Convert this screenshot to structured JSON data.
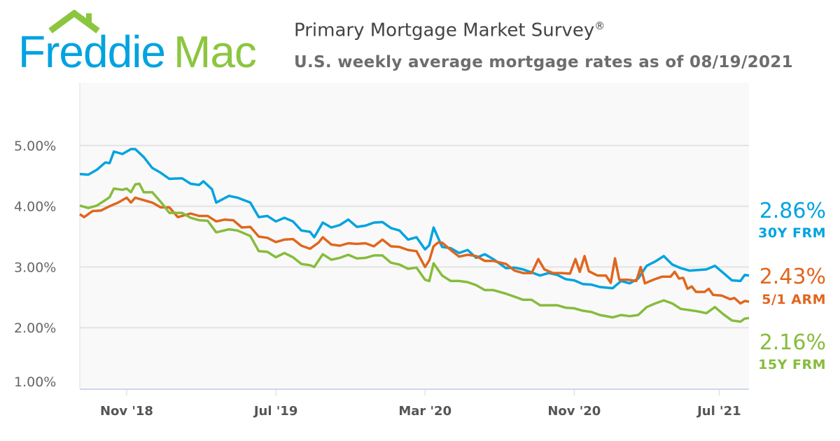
{
  "header": {
    "logo_text_1": "Freddie",
    "logo_text_2": "Mac",
    "title": "Primary Mortgage Market Survey",
    "title_mark": "®",
    "subtitle": "U.S. weekly average mortgage rates as of 08/19/2021"
  },
  "colors": {
    "blue": "#00a3e0",
    "orange": "#e0661e",
    "green": "#86bc3c",
    "logo_blue": "#00a3e0",
    "logo_green": "#8cc63f"
  },
  "chart_data": {
    "type": "line",
    "title": "Primary Mortgage Market Survey®",
    "subtitle": "U.S. weekly average mortgage rates as of 08/19/2021",
    "xlim": [
      "2018-08-16",
      "2021-08-19"
    ],
    "ylim": [
      1.0,
      6.0
    ],
    "grid": true,
    "y_ticks": [
      {
        "value": 1.0,
        "label": "1.00%"
      },
      {
        "value": 2.0,
        "label": "2.00%"
      },
      {
        "value": 3.0,
        "label": "3.00%"
      },
      {
        "value": 4.0,
        "label": "4.00%"
      },
      {
        "value": 5.0,
        "label": "5.00%"
      }
    ],
    "x_ticks": [
      {
        "date": "2018-11-01",
        "label": "Nov '18"
      },
      {
        "date": "2019-07-04",
        "label": "Jul '19"
      },
      {
        "date": "2020-03-05",
        "label": "Mar '20"
      },
      {
        "date": "2020-11-05",
        "label": "Nov '20"
      },
      {
        "date": "2021-07-01",
        "label": "Jul '21"
      }
    ],
    "series": [
      {
        "name": "30Y FRM",
        "latest": "2.86%",
        "color": "#00a3e0",
        "points": [
          [
            "2018-08-16",
            4.53
          ],
          [
            "2018-08-30",
            4.52
          ],
          [
            "2018-09-13",
            4.6
          ],
          [
            "2018-09-27",
            4.72
          ],
          [
            "2018-10-04",
            4.71
          ],
          [
            "2018-10-11",
            4.9
          ],
          [
            "2018-10-25",
            4.86
          ],
          [
            "2018-11-08",
            4.94
          ],
          [
            "2018-11-15",
            4.94
          ],
          [
            "2018-11-29",
            4.81
          ],
          [
            "2018-12-13",
            4.63
          ],
          [
            "2018-12-27",
            4.55
          ],
          [
            "2019-01-10",
            4.45
          ],
          [
            "2019-01-31",
            4.46
          ],
          [
            "2019-02-14",
            4.37
          ],
          [
            "2019-02-28",
            4.35
          ],
          [
            "2019-03-07",
            4.41
          ],
          [
            "2019-03-21",
            4.28
          ],
          [
            "2019-03-28",
            4.06
          ],
          [
            "2019-04-18",
            4.17
          ],
          [
            "2019-05-02",
            4.14
          ],
          [
            "2019-05-23",
            4.06
          ],
          [
            "2019-06-06",
            3.82
          ],
          [
            "2019-06-20",
            3.84
          ],
          [
            "2019-07-04",
            3.75
          ],
          [
            "2019-07-18",
            3.81
          ],
          [
            "2019-08-01",
            3.75
          ],
          [
            "2019-08-15",
            3.6
          ],
          [
            "2019-08-29",
            3.58
          ],
          [
            "2019-09-05",
            3.49
          ],
          [
            "2019-09-19",
            3.73
          ],
          [
            "2019-10-03",
            3.65
          ],
          [
            "2019-10-17",
            3.69
          ],
          [
            "2019-10-31",
            3.78
          ],
          [
            "2019-11-14",
            3.66
          ],
          [
            "2019-11-28",
            3.68
          ],
          [
            "2019-12-12",
            3.73
          ],
          [
            "2019-12-26",
            3.74
          ],
          [
            "2020-01-09",
            3.64
          ],
          [
            "2020-01-23",
            3.6
          ],
          [
            "2020-02-06",
            3.45
          ],
          [
            "2020-02-20",
            3.49
          ],
          [
            "2020-03-05",
            3.29
          ],
          [
            "2020-03-12",
            3.36
          ],
          [
            "2020-03-19",
            3.65
          ],
          [
            "2020-04-02",
            3.33
          ],
          [
            "2020-04-16",
            3.31
          ],
          [
            "2020-04-30",
            3.23
          ],
          [
            "2020-05-14",
            3.28
          ],
          [
            "2020-05-28",
            3.15
          ],
          [
            "2020-06-11",
            3.21
          ],
          [
            "2020-06-25",
            3.13
          ],
          [
            "2020-07-16",
            2.98
          ],
          [
            "2020-07-30",
            2.99
          ],
          [
            "2020-08-13",
            2.96
          ],
          [
            "2020-08-27",
            2.91
          ],
          [
            "2020-09-10",
            2.86
          ],
          [
            "2020-09-24",
            2.9
          ],
          [
            "2020-10-08",
            2.87
          ],
          [
            "2020-10-22",
            2.8
          ],
          [
            "2020-11-05",
            2.78
          ],
          [
            "2020-11-19",
            2.72
          ],
          [
            "2020-12-03",
            2.71
          ],
          [
            "2020-12-17",
            2.67
          ],
          [
            "2021-01-07",
            2.65
          ],
          [
            "2021-01-21",
            2.77
          ],
          [
            "2021-02-04",
            2.73
          ],
          [
            "2021-02-18",
            2.81
          ],
          [
            "2021-03-04",
            3.02
          ],
          [
            "2021-03-18",
            3.09
          ],
          [
            "2021-04-01",
            3.18
          ],
          [
            "2021-04-15",
            3.04
          ],
          [
            "2021-04-29",
            2.98
          ],
          [
            "2021-05-13",
            2.94
          ],
          [
            "2021-05-27",
            2.95
          ],
          [
            "2021-06-10",
            2.96
          ],
          [
            "2021-06-24",
            3.02
          ],
          [
            "2021-07-08",
            2.9
          ],
          [
            "2021-07-22",
            2.78
          ],
          [
            "2021-08-05",
            2.77
          ],
          [
            "2021-08-12",
            2.87
          ],
          [
            "2021-08-19",
            2.86
          ]
        ]
      },
      {
        "name": "5/1 ARM",
        "latest": "2.43%",
        "color": "#e0661e",
        "points": [
          [
            "2018-08-16",
            3.87
          ],
          [
            "2018-08-23",
            3.82
          ],
          [
            "2018-09-06",
            3.92
          ],
          [
            "2018-09-20",
            3.93
          ],
          [
            "2018-10-04",
            4.0
          ],
          [
            "2018-10-18",
            4.06
          ],
          [
            "2018-11-01",
            4.14
          ],
          [
            "2018-11-08",
            4.06
          ],
          [
            "2018-11-15",
            4.14
          ],
          [
            "2018-11-29",
            4.1
          ],
          [
            "2018-12-13",
            4.06
          ],
          [
            "2018-12-27",
            3.98
          ],
          [
            "2019-01-10",
            3.98
          ],
          [
            "2019-01-24",
            3.82
          ],
          [
            "2019-02-14",
            3.88
          ],
          [
            "2019-02-28",
            3.84
          ],
          [
            "2019-03-14",
            3.84
          ],
          [
            "2019-03-28",
            3.75
          ],
          [
            "2019-04-11",
            3.78
          ],
          [
            "2019-04-25",
            3.77
          ],
          [
            "2019-05-09",
            3.65
          ],
          [
            "2019-05-23",
            3.66
          ],
          [
            "2019-06-06",
            3.5
          ],
          [
            "2019-06-20",
            3.48
          ],
          [
            "2019-07-04",
            3.41
          ],
          [
            "2019-07-18",
            3.45
          ],
          [
            "2019-08-01",
            3.46
          ],
          [
            "2019-08-15",
            3.35
          ],
          [
            "2019-08-29",
            3.3
          ],
          [
            "2019-09-12",
            3.4
          ],
          [
            "2019-09-19",
            3.49
          ],
          [
            "2019-10-03",
            3.37
          ],
          [
            "2019-10-17",
            3.35
          ],
          [
            "2019-10-31",
            3.39
          ],
          [
            "2019-11-14",
            3.38
          ],
          [
            "2019-11-28",
            3.39
          ],
          [
            "2019-12-12",
            3.34
          ],
          [
            "2019-12-26",
            3.45
          ],
          [
            "2020-01-09",
            3.34
          ],
          [
            "2020-01-23",
            3.33
          ],
          [
            "2020-02-06",
            3.28
          ],
          [
            "2020-02-20",
            3.26
          ],
          [
            "2020-03-05",
            3.0
          ],
          [
            "2020-03-12",
            3.11
          ],
          [
            "2020-03-19",
            3.34
          ],
          [
            "2020-03-26",
            3.4
          ],
          [
            "2020-04-02",
            3.4
          ],
          [
            "2020-04-16",
            3.28
          ],
          [
            "2020-04-30",
            3.17
          ],
          [
            "2020-05-14",
            3.2
          ],
          [
            "2020-05-28",
            3.18
          ],
          [
            "2020-06-11",
            3.1
          ],
          [
            "2020-06-25",
            3.1
          ],
          [
            "2020-07-16",
            3.05
          ],
          [
            "2020-07-30",
            2.94
          ],
          [
            "2020-08-13",
            2.9
          ],
          [
            "2020-08-27",
            2.9
          ],
          [
            "2020-09-07",
            3.13
          ],
          [
            "2020-09-17",
            2.96
          ],
          [
            "2020-10-01",
            2.9
          ],
          [
            "2020-10-15",
            2.9
          ],
          [
            "2020-10-29",
            2.89
          ],
          [
            "2020-11-07",
            3.13
          ],
          [
            "2020-11-14",
            2.92
          ],
          [
            "2020-11-22",
            3.18
          ],
          [
            "2020-11-29",
            2.93
          ],
          [
            "2020-12-13",
            2.86
          ],
          [
            "2020-12-27",
            2.86
          ],
          [
            "2021-01-04",
            2.74
          ],
          [
            "2021-01-11",
            3.14
          ],
          [
            "2021-01-18",
            2.79
          ],
          [
            "2021-02-01",
            2.79
          ],
          [
            "2021-02-15",
            2.77
          ],
          [
            "2021-02-22",
            3.0
          ],
          [
            "2021-03-01",
            2.73
          ],
          [
            "2021-03-15",
            2.79
          ],
          [
            "2021-03-29",
            2.84
          ],
          [
            "2021-04-12",
            2.84
          ],
          [
            "2021-04-19",
            2.92
          ],
          [
            "2021-04-26",
            2.81
          ],
          [
            "2021-05-03",
            2.82
          ],
          [
            "2021-05-10",
            2.64
          ],
          [
            "2021-05-17",
            2.68
          ],
          [
            "2021-05-24",
            2.59
          ],
          [
            "2021-06-07",
            2.59
          ],
          [
            "2021-06-14",
            2.64
          ],
          [
            "2021-06-21",
            2.54
          ],
          [
            "2021-07-05",
            2.53
          ],
          [
            "2021-07-19",
            2.47
          ],
          [
            "2021-07-26",
            2.49
          ],
          [
            "2021-08-05",
            2.4
          ],
          [
            "2021-08-12",
            2.44
          ],
          [
            "2021-08-19",
            2.43
          ]
        ]
      },
      {
        "name": "15Y FRM",
        "latest": "2.16%",
        "color": "#86bc3c",
        "points": [
          [
            "2018-08-16",
            4.01
          ],
          [
            "2018-08-30",
            3.97
          ],
          [
            "2018-09-13",
            4.01
          ],
          [
            "2018-09-27",
            4.1
          ],
          [
            "2018-10-04",
            4.15
          ],
          [
            "2018-10-11",
            4.29
          ],
          [
            "2018-10-25",
            4.27
          ],
          [
            "2018-11-01",
            4.29
          ],
          [
            "2018-11-08",
            4.23
          ],
          [
            "2018-11-15",
            4.36
          ],
          [
            "2018-11-22",
            4.37
          ],
          [
            "2018-11-29",
            4.23
          ],
          [
            "2018-12-13",
            4.23
          ],
          [
            "2018-12-27",
            4.07
          ],
          [
            "2019-01-10",
            3.89
          ],
          [
            "2019-01-31",
            3.89
          ],
          [
            "2019-02-14",
            3.81
          ],
          [
            "2019-02-28",
            3.77
          ],
          [
            "2019-03-14",
            3.76
          ],
          [
            "2019-03-28",
            3.57
          ],
          [
            "2019-04-18",
            3.62
          ],
          [
            "2019-05-02",
            3.6
          ],
          [
            "2019-05-23",
            3.51
          ],
          [
            "2019-06-06",
            3.26
          ],
          [
            "2019-06-20",
            3.25
          ],
          [
            "2019-07-04",
            3.16
          ],
          [
            "2019-07-18",
            3.23
          ],
          [
            "2019-08-01",
            3.16
          ],
          [
            "2019-08-15",
            3.05
          ],
          [
            "2019-08-29",
            3.03
          ],
          [
            "2019-09-05",
            3.0
          ],
          [
            "2019-09-19",
            3.21
          ],
          [
            "2019-10-03",
            3.12
          ],
          [
            "2019-10-17",
            3.15
          ],
          [
            "2019-10-31",
            3.2
          ],
          [
            "2019-11-14",
            3.14
          ],
          [
            "2019-11-28",
            3.15
          ],
          [
            "2019-12-12",
            3.19
          ],
          [
            "2019-12-26",
            3.19
          ],
          [
            "2020-01-09",
            3.07
          ],
          [
            "2020-01-23",
            3.04
          ],
          [
            "2020-02-06",
            2.97
          ],
          [
            "2020-02-20",
            2.99
          ],
          [
            "2020-03-05",
            2.79
          ],
          [
            "2020-03-12",
            2.77
          ],
          [
            "2020-03-19",
            3.06
          ],
          [
            "2020-04-02",
            2.86
          ],
          [
            "2020-04-16",
            2.77
          ],
          [
            "2020-04-30",
            2.77
          ],
          [
            "2020-05-14",
            2.75
          ],
          [
            "2020-05-28",
            2.7
          ],
          [
            "2020-06-11",
            2.62
          ],
          [
            "2020-06-25",
            2.62
          ],
          [
            "2020-07-16",
            2.56
          ],
          [
            "2020-07-30",
            2.51
          ],
          [
            "2020-08-13",
            2.46
          ],
          [
            "2020-08-27",
            2.46
          ],
          [
            "2020-09-10",
            2.37
          ],
          [
            "2020-09-24",
            2.37
          ],
          [
            "2020-10-08",
            2.37
          ],
          [
            "2020-10-22",
            2.33
          ],
          [
            "2020-11-05",
            2.32
          ],
          [
            "2020-11-19",
            2.28
          ],
          [
            "2020-12-03",
            2.26
          ],
          [
            "2020-12-17",
            2.21
          ],
          [
            "2021-01-07",
            2.17
          ],
          [
            "2021-01-21",
            2.21
          ],
          [
            "2021-02-04",
            2.19
          ],
          [
            "2021-02-18",
            2.21
          ],
          [
            "2021-03-04",
            2.34
          ],
          [
            "2021-03-18",
            2.4
          ],
          [
            "2021-04-01",
            2.45
          ],
          [
            "2021-04-15",
            2.4
          ],
          [
            "2021-04-29",
            2.31
          ],
          [
            "2021-05-13",
            2.29
          ],
          [
            "2021-05-27",
            2.27
          ],
          [
            "2021-06-10",
            2.24
          ],
          [
            "2021-06-24",
            2.34
          ],
          [
            "2021-07-08",
            2.22
          ],
          [
            "2021-07-22",
            2.12
          ],
          [
            "2021-08-05",
            2.1
          ],
          [
            "2021-08-12",
            2.15
          ],
          [
            "2021-08-19",
            2.16
          ]
        ]
      }
    ]
  }
}
